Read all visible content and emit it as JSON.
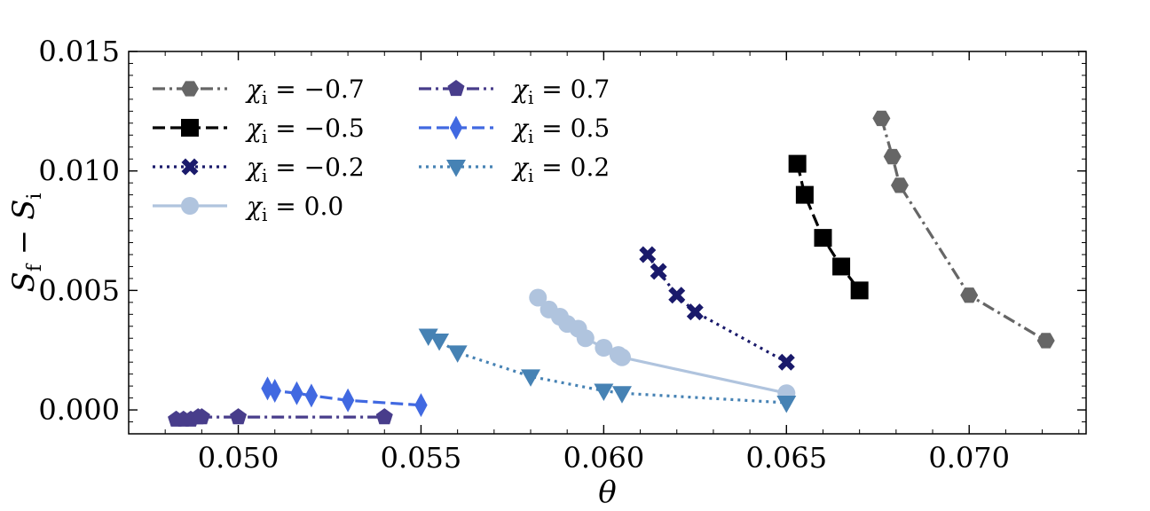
{
  "chart_data": {
    "type": "line",
    "title": "",
    "xlabel": "θ",
    "ylabel": {
      "main": "S",
      "sub_f": "f",
      "minus": " − ",
      "sub_i": "i"
    },
    "xlim": [
      0.047,
      0.0732
    ],
    "ylim": [
      -0.001,
      0.015
    ],
    "xticks": [
      0.05,
      0.055,
      0.06,
      0.065,
      0.07
    ],
    "xtick_labels": [
      "0.050",
      "0.055",
      "0.060",
      "0.065",
      "0.070"
    ],
    "yticks": [
      0.0,
      0.005,
      0.01,
      0.015
    ],
    "ytick_labels": [
      "0.000",
      "0.005",
      "0.010",
      "0.015"
    ],
    "legend_symbol": "χ",
    "legend_sub": "i",
    "legend_eq": " = ",
    "legend_location": "upper-left",
    "series": [
      {
        "name": "χi = −0.7",
        "value_label": "−0.7",
        "color": "#666666",
        "marker": "hexagon",
        "line": "dashdot",
        "x": [
          0.0676,
          0.0679,
          0.0681,
          0.07,
          0.0721
        ],
        "y": [
          0.0122,
          0.0106,
          0.0094,
          0.0048,
          0.0029
        ]
      },
      {
        "name": "χi = −0.5",
        "value_label": "−0.5",
        "color": "#000000",
        "marker": "square",
        "line": "dashed",
        "x": [
          0.0653,
          0.0655,
          0.066,
          0.0665,
          0.067
        ],
        "y": [
          0.0103,
          0.009,
          0.0072,
          0.006,
          0.005
        ]
      },
      {
        "name": "χi = −0.2",
        "value_label": "−0.2",
        "color": "#1a1a6b",
        "marker": "x",
        "line": "dotted",
        "x": [
          0.0612,
          0.0615,
          0.062,
          0.0625,
          0.065
        ],
        "y": [
          0.0065,
          0.0058,
          0.0048,
          0.0041,
          0.002
        ]
      },
      {
        "name": "χi = 0.0",
        "value_label": "0.0",
        "color": "#b0c4de",
        "marker": "circle",
        "line": "solid",
        "x": [
          0.0582,
          0.0585,
          0.0588,
          0.059,
          0.0593,
          0.0595,
          0.06,
          0.0604,
          0.0605,
          0.065
        ],
        "y": [
          0.0047,
          0.0042,
          0.0039,
          0.0036,
          0.0034,
          0.003,
          0.0026,
          0.0023,
          0.0022,
          0.0007
        ]
      },
      {
        "name": "χi = 0.7",
        "value_label": "0.7",
        "color": "#483d8b",
        "marker": "pentagon",
        "line": "dashdot",
        "x": [
          0.0483,
          0.0485,
          0.0487,
          0.0489,
          0.049,
          0.05,
          0.054
        ],
        "y": [
          -0.0004,
          -0.0004,
          -0.0004,
          -0.0003,
          -0.0003,
          -0.0003,
          -0.0003
        ]
      },
      {
        "name": "χi = 0.5",
        "value_label": "0.5",
        "color": "#4169e1",
        "marker": "diamond",
        "line": "dashed",
        "x": [
          0.0508,
          0.051,
          0.0516,
          0.052,
          0.053,
          0.055
        ],
        "y": [
          0.0009,
          0.0008,
          0.0007,
          0.0006,
          0.0004,
          0.0002
        ]
      },
      {
        "name": "χi = 0.2",
        "value_label": "0.2",
        "color": "#4682b4",
        "marker": "triangle-down",
        "line": "dotted",
        "x": [
          0.0552,
          0.0555,
          0.056,
          0.058,
          0.06,
          0.0605,
          0.065
        ],
        "y": [
          0.0031,
          0.0029,
          0.0024,
          0.0014,
          0.0008,
          0.0007,
          0.0003
        ]
      }
    ]
  }
}
